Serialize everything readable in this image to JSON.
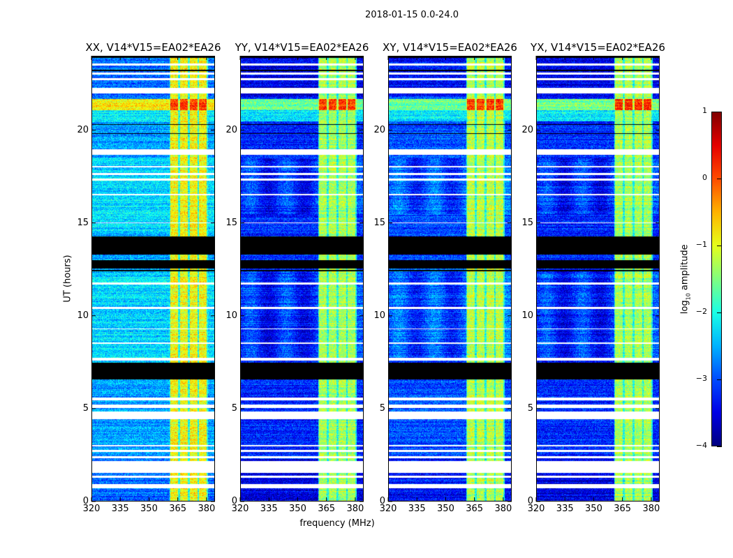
{
  "chart_data": {
    "type": "heatmap",
    "title": "2018-01-15 0.0-24.0",
    "xlabel": "frequency (MHz)",
    "ylabel": "UT (hours)",
    "xlim": [
      320,
      384.4
    ],
    "ylim": [
      0,
      24
    ],
    "xticks": [
      320,
      335,
      350,
      365,
      380
    ],
    "yticks": [
      0,
      5,
      10,
      15,
      20
    ],
    "panels": [
      {
        "title": "XX, V14*V15=EA02*EA26",
        "background_level": -2.6,
        "band_level": -0.9
      },
      {
        "title": "YY, V14*V15=EA02*EA26",
        "background_level": -3.2,
        "band_level": -1.3
      },
      {
        "title": "XY, V14*V15=EA02*EA26",
        "background_level": -3.0,
        "band_level": -1.2
      },
      {
        "title": "YX, V14*V15=EA02*EA26",
        "background_level": -3.2,
        "band_level": -1.3
      }
    ],
    "rfi_channels_mhz": [
      [
        361,
        365
      ],
      [
        366,
        370
      ],
      [
        371,
        375
      ],
      [
        376,
        380
      ]
    ],
    "strong_rfi_hours": [
      21.1,
      21.7
    ],
    "flagged_white_hours": [
      [
        0.0,
        0.05
      ],
      [
        0.75,
        0.95
      ],
      [
        1.3,
        1.4
      ],
      [
        1.55,
        2.2
      ],
      [
        2.35,
        2.45
      ],
      [
        2.7,
        2.8
      ],
      [
        3.0,
        3.05
      ],
      [
        4.45,
        4.85
      ],
      [
        5.05,
        5.25
      ],
      [
        5.45,
        5.6
      ],
      [
        7.6,
        7.75
      ],
      [
        8.5,
        8.6
      ],
      [
        9.3,
        9.35
      ],
      [
        10.4,
        10.5
      ],
      [
        11.7,
        11.8
      ],
      [
        15.0,
        15.05
      ],
      [
        16.5,
        16.6
      ],
      [
        17.3,
        17.4
      ],
      [
        17.6,
        17.7
      ],
      [
        18.0,
        18.1
      ],
      [
        18.7,
        19.0
      ],
      [
        22.0,
        22.3
      ],
      [
        22.7,
        22.8
      ],
      [
        23.0,
        23.1
      ],
      [
        23.5,
        23.6
      ]
    ],
    "flagged_black_hours": [
      [
        6.6,
        7.5
      ],
      [
        12.4,
        12.5
      ],
      [
        12.55,
        13.0
      ],
      [
        13.3,
        14.3
      ],
      [
        19.8,
        19.85
      ],
      [
        20.3,
        20.35
      ],
      [
        23.2,
        23.25
      ],
      [
        23.9,
        24
      ]
    ],
    "colorbar": {
      "label": "log10 amplitude",
      "label_base": "log",
      "label_sub": "10",
      "label_rest": " amplitude",
      "range": [
        -4,
        1
      ],
      "ticks": [
        1,
        0,
        -1,
        -2,
        -3,
        -4
      ],
      "tick_labels": [
        "1",
        "0",
        "−1",
        "−2",
        "−3",
        "−4"
      ],
      "colormap": "jet"
    }
  }
}
